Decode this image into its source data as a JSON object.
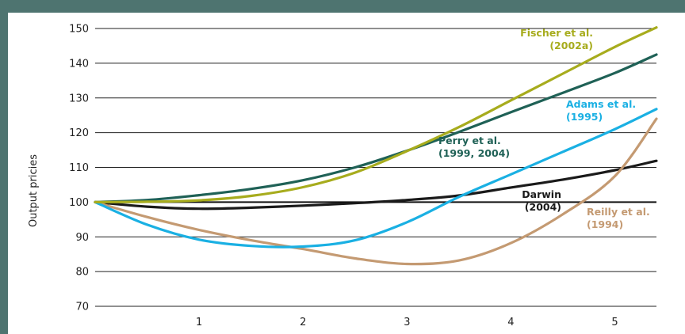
{
  "chart_data": {
    "type": "line",
    "title": "",
    "xlabel": "",
    "ylabel": "Output pricies",
    "xlim": [
      0,
      5.4
    ],
    "ylim": [
      70,
      150
    ],
    "x_ticks": [
      1,
      2,
      3,
      4,
      5
    ],
    "y_ticks": [
      70,
      80,
      90,
      100,
      110,
      120,
      130,
      140,
      150
    ],
    "grid": "horizontal",
    "reference_line": 100,
    "series": [
      {
        "key": "fischer",
        "color": "#a7ac1d",
        "label_lines": [
          "Fischer et al.",
          "(2002a)"
        ],
        "points": [
          [
            0,
            100
          ],
          [
            0.5,
            100.1
          ],
          [
            1,
            100.5
          ],
          [
            1.5,
            101.8
          ],
          [
            2,
            104.3
          ],
          [
            2.5,
            108.5
          ],
          [
            3,
            114.7
          ],
          [
            3.5,
            121.6
          ],
          [
            4,
            129.3
          ],
          [
            4.5,
            137
          ],
          [
            5,
            144.7
          ],
          [
            5.4,
            150.3
          ]
        ]
      },
      {
        "key": "perry",
        "color": "#1f6156",
        "label_lines": [
          "Perry et al.",
          "(1999, 2004)"
        ],
        "points": [
          [
            0,
            100
          ],
          [
            0.5,
            100.6
          ],
          [
            1,
            102
          ],
          [
            1.5,
            103.8
          ],
          [
            2,
            106.3
          ],
          [
            2.5,
            110
          ],
          [
            3,
            114.8
          ],
          [
            3.5,
            120.2
          ],
          [
            4,
            125.9
          ],
          [
            4.5,
            131.5
          ],
          [
            5,
            137.2
          ],
          [
            5.4,
            142.5
          ]
        ]
      },
      {
        "key": "adams",
        "color": "#1ab0e3",
        "label_lines": [
          "Adams et al.",
          "(1995)"
        ],
        "points": [
          [
            0,
            100
          ],
          [
            0.5,
            93.5
          ],
          [
            1,
            89.2
          ],
          [
            1.5,
            87.4
          ],
          [
            2,
            87.2
          ],
          [
            2.5,
            89
          ],
          [
            3,
            94.2
          ],
          [
            3.5,
            101.5
          ],
          [
            4,
            108
          ],
          [
            4.5,
            114.5
          ],
          [
            5,
            121
          ],
          [
            5.4,
            126.8
          ]
        ]
      },
      {
        "key": "darwin",
        "color": "#1a1a1a",
        "label_lines": [
          "Darwin",
          "(2004)"
        ],
        "points": [
          [
            0,
            100
          ],
          [
            0.5,
            98.7
          ],
          [
            1,
            98.1
          ],
          [
            1.5,
            98.4
          ],
          [
            2,
            99
          ],
          [
            2.5,
            99.7
          ],
          [
            3,
            100.6
          ],
          [
            3.5,
            101.9
          ],
          [
            4,
            104.2
          ],
          [
            4.5,
            106.5
          ],
          [
            5,
            109.2
          ],
          [
            5.4,
            111.9
          ]
        ]
      },
      {
        "key": "reilly",
        "color": "#c49a72",
        "label_lines": [
          "Reilly et al.",
          "(1994)"
        ],
        "points": [
          [
            0,
            100
          ],
          [
            0.5,
            95.7
          ],
          [
            1,
            92
          ],
          [
            1.5,
            89
          ],
          [
            2,
            86.5
          ],
          [
            2.5,
            83.8
          ],
          [
            3,
            82.2
          ],
          [
            3.5,
            83.2
          ],
          [
            4,
            88.2
          ],
          [
            4.5,
            96.5
          ],
          [
            5,
            107.5
          ],
          [
            5.4,
            124
          ]
        ]
      }
    ]
  }
}
